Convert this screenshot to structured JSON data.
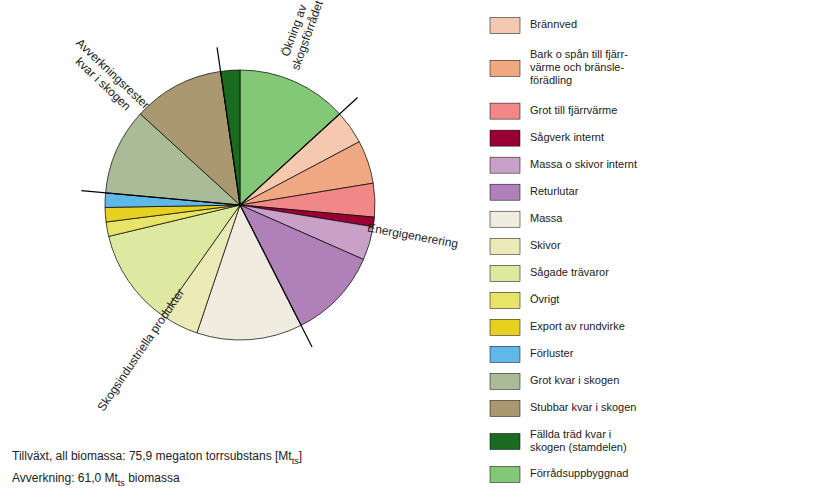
{
  "chart_data": {
    "type": "pie",
    "values": [
      11.5,
      3.5,
      4.5,
      3.5,
      1.0,
      3.5,
      9.5,
      11.0,
      4.0,
      10.0,
      1.5,
      1.5,
      1.5,
      9.0,
      9.5,
      2.0
    ],
    "colors": [
      "#82C877",
      "#F5C9B0",
      "#F0A882",
      "#F08888",
      "#990033",
      "#C8A0C8",
      "#B080B8",
      "#F0EDE0",
      "#ECEBB8",
      "#DDE8A0",
      "#E8E468",
      "#E8D020",
      "#60B8E8",
      "#AABB98",
      "#AA9870",
      "#1A6B20"
    ],
    "slice_groups": [
      "Ökning av\nskogsförrådet",
      "Energigenerering",
      "Energigenerering",
      "Energigenerering",
      "Energigenerering",
      "Energigenerering",
      "Energigenerering",
      "Skogsindustriella produkter",
      "Skogsindustriella produkter",
      "Skogsindustriella produkter",
      "Skogsindustriella produkter",
      "Skogsindustriella produkter",
      "Skogsindustriella produkter",
      "Avverkningsrester\nkvar i skogen",
      "Avverkningsrester\nkvar i skogen",
      "Ökning av\nskogsförrådet"
    ],
    "legend_entries": [
      {
        "label": "Brännved",
        "color": "#F5C9B0"
      },
      {
        "label": "Bark o spån till fjärr-\nvärme och bränsle-\nförädling",
        "color": "#F0A882"
      },
      {
        "label": "Grot till fjärrvärme",
        "color": "#F08888"
      },
      {
        "label": "Sågverk internt",
        "color": "#990033"
      },
      {
        "label": "Massa o skivor internt",
        "color": "#C8A0C8"
      },
      {
        "label": "Returlutar",
        "color": "#B080B8"
      },
      {
        "label": "Massa",
        "color": "#F0EDE0"
      },
      {
        "label": "Skivor",
        "color": "#ECEBB8"
      },
      {
        "label": "Sågade trävaror",
        "color": "#DDE8A0"
      },
      {
        "label": "Övrigt",
        "color": "#E8E468"
      },
      {
        "label": "Export av rundvirke",
        "color": "#E8D020"
      },
      {
        "label": "Förluster",
        "color": "#60B8E8"
      },
      {
        "label": "Grot kvar i skogen",
        "color": "#AABB98"
      },
      {
        "label": "Stubbar kvar i skogen",
        "color": "#AA9870"
      },
      {
        "label": "Fällda träd kvar i\nskogen (stamdelen)",
        "color": "#1A6B20"
      },
      {
        "label": "Förrådsuppbyggnad",
        "color": "#82C877"
      }
    ],
    "footnotes": [
      [
        {
          "text": "Tillväxt, all biomassa: 75,9 megaton torrsubstans [Mt"
        },
        {
          "text": "ts",
          "subscript": true
        },
        {
          "text": "]"
        }
      ],
      [
        {
          "text": "Avverkning: 61,0 Mt"
        },
        {
          "text": "ts",
          "subscript": true
        },
        {
          "text": " biomassa"
        }
      ]
    ]
  }
}
